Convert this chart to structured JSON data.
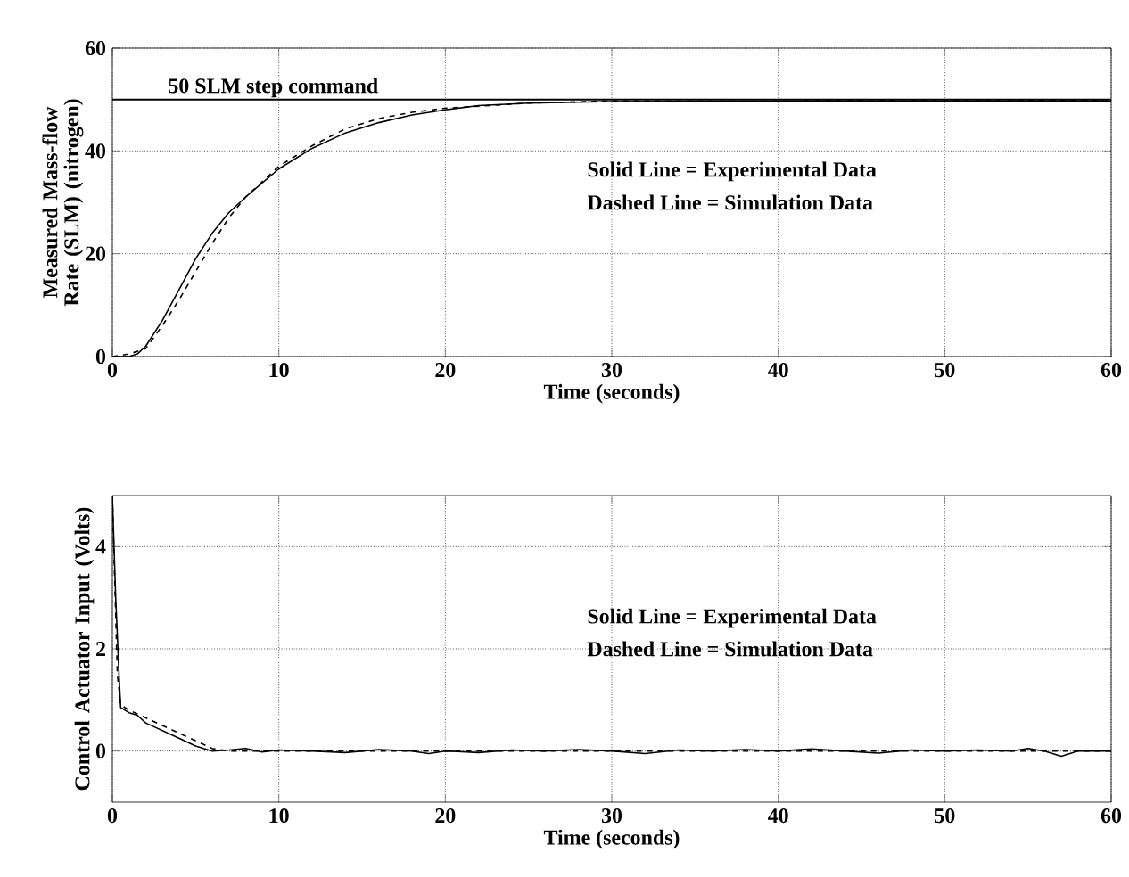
{
  "chart_data": [
    {
      "type": "line",
      "xlabel": "Time  (seconds)",
      "ylabel": "Measured Mass-flow Rate (SLM) (nitrogen)",
      "xlim": [
        0,
        60
      ],
      "ylim": [
        0,
        60
      ],
      "xticks": [
        0,
        10,
        20,
        30,
        40,
        50,
        60
      ],
      "yticks": [
        0,
        20,
        40,
        60
      ],
      "grid": true,
      "annotations": [
        "Solid Line = Experimental Data",
        "Dashed Line = Simulation Data"
      ],
      "ref_lines": [
        {
          "axis": "y",
          "value": 50,
          "label": "50 SLM step command",
          "color": "#000000",
          "line_style": "solid"
        }
      ],
      "series": [
        {
          "color": "#000000",
          "line_style": "solid",
          "x": [
            0,
            1,
            1.5,
            2,
            3,
            4,
            5,
            6,
            7,
            8,
            10,
            12,
            14,
            16,
            18,
            20,
            22,
            25,
            30,
            40,
            60
          ],
          "values": [
            0,
            0,
            0.5,
            2,
            7,
            13,
            19,
            24,
            28,
            31,
            36.5,
            40.5,
            43.5,
            45.5,
            47,
            48,
            48.8,
            49.3,
            49.6,
            49.7,
            49.7
          ]
        },
        {
          "color": "#000000",
          "line_style": "dashed",
          "x": [
            0,
            1,
            2,
            3,
            4,
            5,
            6,
            7,
            8,
            10,
            12,
            14,
            16,
            18,
            20,
            25,
            30,
            60
          ],
          "values": [
            0,
            0.5,
            1.5,
            6,
            11,
            16.5,
            22,
            27,
            31,
            37,
            41,
            44.3,
            46.3,
            47.5,
            48.3,
            49.3,
            49.7,
            49.8
          ]
        }
      ]
    },
    {
      "type": "line",
      "xlabel": "Time  (seconds)",
      "ylabel": "Control Actuator Input (Volts)",
      "xlim": [
        0,
        60
      ],
      "ylim": [
        -1,
        5
      ],
      "xticks": [
        0,
        10,
        20,
        30,
        40,
        50,
        60
      ],
      "yticks": [
        0,
        2,
        4
      ],
      "grid": true,
      "annotations": [
        "Solid Line = Experimental Data",
        "Dashed Line = Simulation Data"
      ],
      "series": [
        {
          "color": "#000000",
          "line_style": "solid",
          "x": [
            0,
            0.2,
            0.4,
            0.5,
            1,
            1.5,
            2,
            3,
            4,
            5,
            6,
            7,
            8,
            9,
            10,
            12,
            14,
            16,
            18,
            19,
            20,
            22,
            24,
            26,
            28,
            30,
            32,
            34,
            36,
            38,
            40,
            42,
            44,
            46,
            48,
            50,
            52,
            54,
            55,
            56,
            57,
            58,
            60
          ],
          "values": [
            5,
            3,
            1.5,
            0.85,
            0.75,
            0.7,
            0.55,
            0.4,
            0.25,
            0.1,
            0,
            0.02,
            0.05,
            -0.02,
            0.02,
            0,
            -0.03,
            0.03,
            0,
            -0.05,
            0,
            -0.03,
            0.02,
            0,
            0.03,
            0,
            -0.05,
            0.02,
            0,
            0.03,
            0,
            0.04,
            0,
            -0.04,
            0.02,
            0,
            0.02,
            0,
            0.05,
            0,
            -0.1,
            0,
            0
          ]
        },
        {
          "color": "#000000",
          "line_style": "dashed",
          "x": [
            0,
            0.3,
            0.5,
            1,
            2,
            4,
            6,
            7,
            60
          ],
          "values": [
            5,
            1.5,
            0.9,
            0.8,
            0.65,
            0.35,
            0.05,
            0,
            0
          ]
        }
      ]
    }
  ]
}
